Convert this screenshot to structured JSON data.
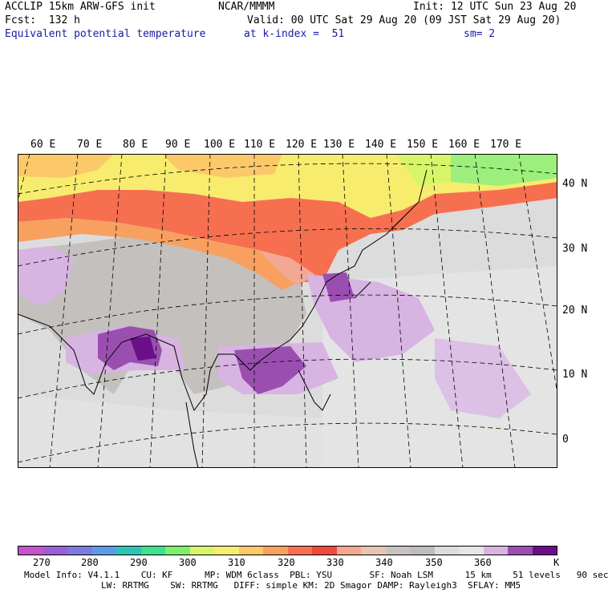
{
  "header": {
    "model": "ACCLIP 15km ARW-GFS init",
    "org": "NCAR/MMMM",
    "init": "Init: 12 UTC Sun 23 Aug 20",
    "fcst": "Fcst:  132 h",
    "valid": "Valid: 00 UTC Sat 29 Aug 20 (09 JST Sat 29 Aug 20)",
    "field": "Equivalent potential temperature",
    "level": "at k-index =  51",
    "smooth": "sm= 2"
  },
  "map": {
    "lon_labels": [
      "60 E",
      "70 E",
      "80 E",
      "90 E",
      "100 E",
      "110 E",
      "120 E",
      "130 E",
      "140 E",
      "150 E",
      "160 E",
      "170 E"
    ],
    "lat_labels": [
      "40 N",
      "30 N",
      "20 N",
      "10 N",
      "0"
    ]
  },
  "colorbar": {
    "ticks": [
      "270",
      "280",
      "290",
      "300",
      "310",
      "320",
      "330",
      "340",
      "350",
      "360",
      "K"
    ],
    "colors": [
      "#c452c9",
      "#9a5fd6",
      "#7b7be0",
      "#5d9be8",
      "#2fc3b8",
      "#3fe08c",
      "#7cf06a",
      "#d8f56a",
      "#f8ec6e",
      "#fbc96a",
      "#f8a060",
      "#f67050",
      "#ee4a3c",
      "#f2a892",
      "#e8c4b0",
      "#c9c3c0",
      "#bdbdbd",
      "#dcdcdc",
      "#e6e6e6",
      "#d8b4e2",
      "#9a4fb0",
      "#6a0f88"
    ]
  },
  "model_info": {
    "line1": "Model Info: V4.1.1    CU: KF      MP: WDM 6class  PBL: YSU       SF: Noah LSM      15 km    51 levels   90 sec",
    "line2": "LW: RRTMG    SW: RRTMG   DIFF: simple KM: 2D Smagor DAMP: Rayleigh3  SFLAY: MM5"
  }
}
